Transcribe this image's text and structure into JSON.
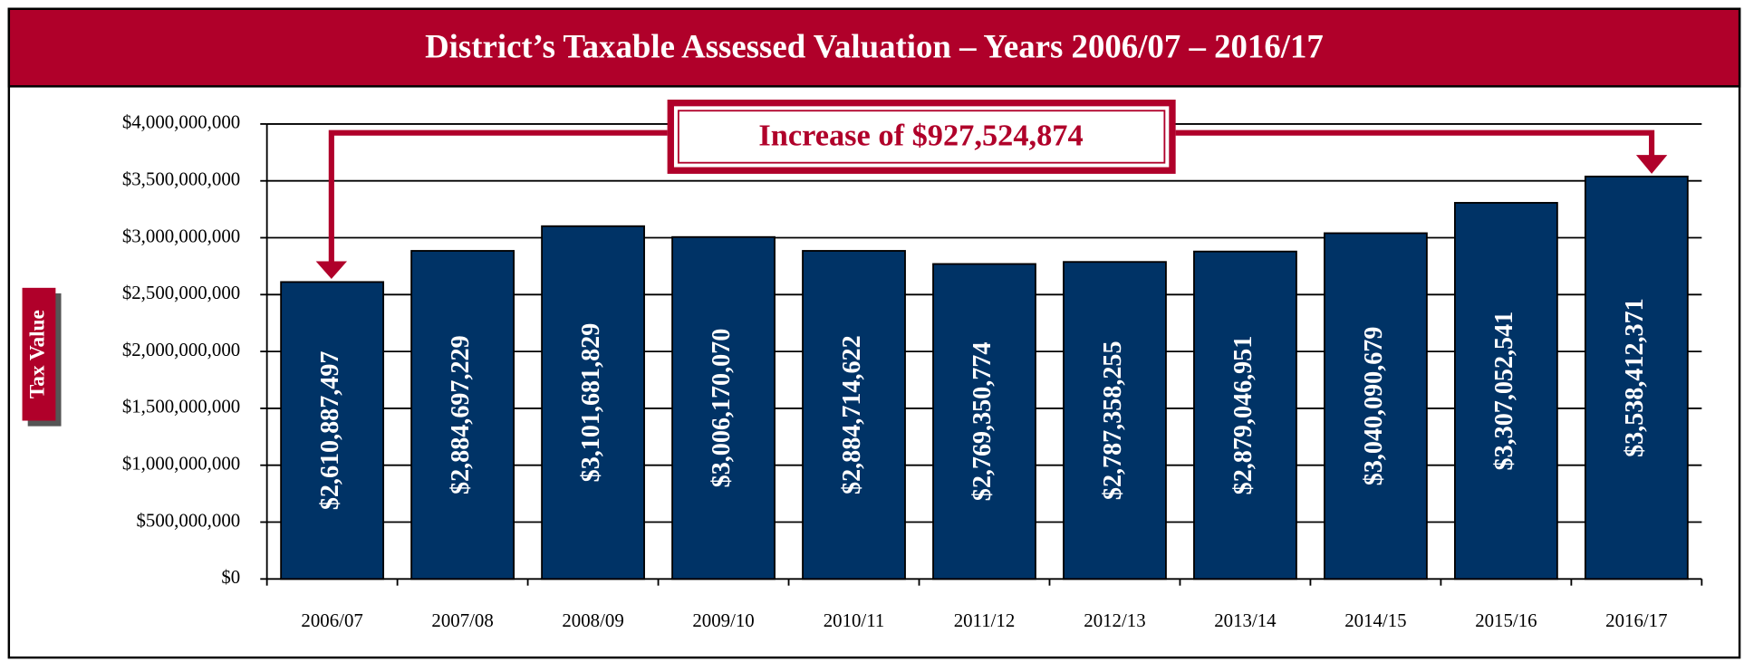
{
  "chart_data": {
    "type": "bar",
    "title": "District’s Taxable Assessed Valuation – Years 2006/07 – 2016/17",
    "y_label": "Tax Value",
    "annotation": "Increase of $927,524,874",
    "categories": [
      "2006/07",
      "2007/08",
      "2008/09",
      "2009/10",
      "2010/11",
      "2011/12",
      "2012/13",
      "2013/14",
      "2014/15",
      "2015/16",
      "2016/17"
    ],
    "values": [
      2610887497,
      2884697229,
      3101681829,
      3006170070,
      2884714622,
      2769350774,
      2787358255,
      2879046951,
      3040090679,
      3307052541,
      3538412371
    ],
    "value_labels": [
      "$2,610,887,497",
      "$2,884,697,229",
      "$3,101,681,829",
      "$3,006,170,070",
      "$2,884,714,622",
      "$2,769,350,774",
      "$2,787,358,255",
      "$2,879,046,951",
      "$3,040,090,679",
      "$3,307,052,541",
      "$3,538,412,371"
    ],
    "color": "#003366",
    "ylim": [
      0,
      4000000000
    ],
    "yticks": [
      {
        "value": 0,
        "label": "$0"
      },
      {
        "value": 500000000,
        "label": "$500,000,000"
      },
      {
        "value": 1000000000,
        "label": "$1,000,000,000"
      },
      {
        "value": 1500000000,
        "label": "$1,500,000,000"
      },
      {
        "value": 2000000000,
        "label": "$2,000,000,000"
      },
      {
        "value": 2500000000,
        "label": "$2,500,000,000"
      },
      {
        "value": 3000000000,
        "label": "$3,000,000,000"
      },
      {
        "value": 3500000000,
        "label": "$3,500,000,000"
      },
      {
        "value": 4000000000,
        "label": "$4,000,000,000"
      }
    ],
    "grid": true
  }
}
